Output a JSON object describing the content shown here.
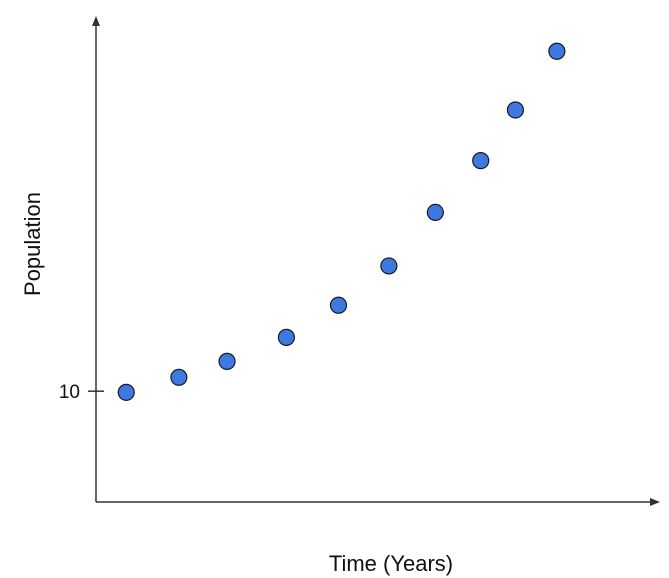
{
  "chart_data": {
    "type": "scatter",
    "xlabel": "Time (Years)",
    "ylabel": "Population",
    "y_ticks": [
      {
        "value": 10,
        "label": "10"
      }
    ],
    "x_ticks": [],
    "point_color": "#3d79e0",
    "point_stroke": "#1a1a1a",
    "axis_color": "#333333",
    "grid": false,
    "legend": "none",
    "xlim": [
      0,
      10
    ],
    "ylim": [
      6.17,
      22.83
    ],
    "points": [
      {
        "x": 0.54,
        "y": 9.96
      },
      {
        "x": 1.48,
        "y": 10.48
      },
      {
        "x": 2.34,
        "y": 11.03
      },
      {
        "x": 3.4,
        "y": 11.86
      },
      {
        "x": 4.33,
        "y": 12.97
      },
      {
        "x": 5.23,
        "y": 14.33
      },
      {
        "x": 6.06,
        "y": 16.18
      },
      {
        "x": 6.87,
        "y": 17.97
      },
      {
        "x": 7.49,
        "y": 19.72
      },
      {
        "x": 8.23,
        "y": 21.75
      }
    ]
  }
}
